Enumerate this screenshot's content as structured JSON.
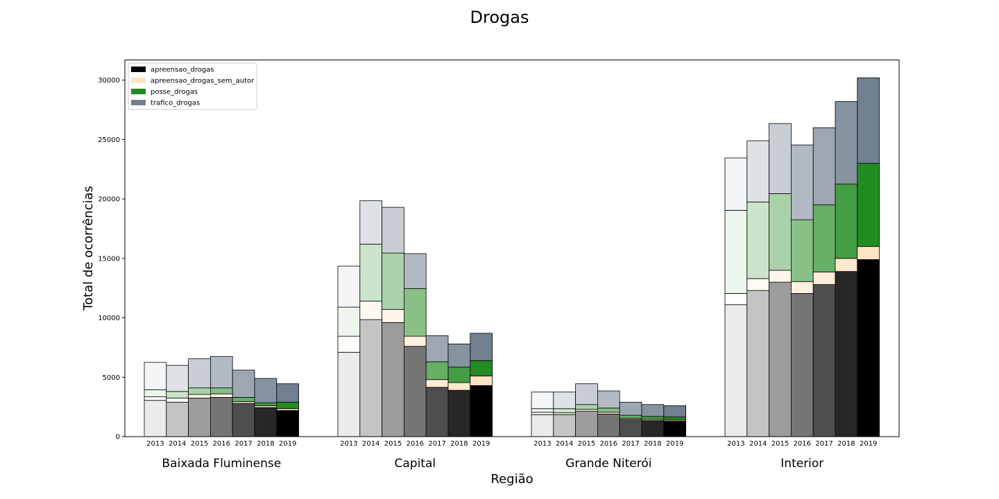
{
  "chart_data": {
    "type": "bar",
    "stacked": true,
    "title": "Drogas",
    "xlabel": "Região",
    "ylabel": "Total de ocorrências",
    "ylim": [
      0,
      31700
    ],
    "yticks": [
      0,
      5000,
      10000,
      15000,
      20000,
      25000,
      30000
    ],
    "grid": false,
    "legend_position": "top-left",
    "years": [
      "2013",
      "2014",
      "2015",
      "2016",
      "2017",
      "2018",
      "2019"
    ],
    "regions": [
      "Baixada Fluminense",
      "Capital",
      "Grande Niterói",
      "Interior"
    ],
    "series": [
      {
        "name": "apreensao_drogas",
        "color": "#000000",
        "values": {
          "Baixada Fluminense": [
            3050,
            2900,
            3250,
            3300,
            2800,
            2450,
            2200
          ],
          "Capital": [
            7100,
            9850,
            9600,
            7600,
            4150,
            3900,
            4300
          ],
          "Grande Niterói": [
            1850,
            1850,
            2150,
            1900,
            1450,
            1350,
            1300
          ],
          "Interior": [
            11100,
            12300,
            13000,
            12050,
            12800,
            13900,
            14900
          ]
        }
      },
      {
        "name": "apreensao_drogas_sem_autor",
        "color": "#ffe4c4",
        "values": {
          "Baixada Fluminense": [
            300,
            350,
            300,
            300,
            150,
            150,
            150
          ],
          "Capital": [
            1350,
            1550,
            1100,
            850,
            650,
            650,
            800
          ],
          "Grande Niterói": [
            200,
            150,
            150,
            150,
            100,
            100,
            100
          ],
          "Interior": [
            950,
            1000,
            1000,
            1000,
            1050,
            1100,
            1100
          ]
        }
      },
      {
        "name": "posse_drogas",
        "color": "#228b22",
        "values": {
          "Baixada Fluminense": [
            600,
            550,
            550,
            500,
            350,
            250,
            550
          ],
          "Capital": [
            2450,
            4800,
            4750,
            4000,
            1500,
            1300,
            1300
          ],
          "Grande Niterói": [
            300,
            350,
            400,
            350,
            250,
            250,
            250
          ],
          "Interior": [
            7000,
            6450,
            6450,
            5200,
            5650,
            6250,
            7000
          ]
        }
      },
      {
        "name": "trafico_drogas",
        "color": "#708090",
        "values": {
          "Baixada Fluminense": [
            2300,
            2200,
            2450,
            2650,
            2300,
            2050,
            1550
          ],
          "Capital": [
            3450,
            3650,
            3850,
            2950,
            2200,
            1950,
            2300
          ],
          "Grande Niterói": [
            1400,
            1400,
            1750,
            1450,
            1100,
            1000,
            950
          ],
          "Interior": [
            4400,
            5150,
            5900,
            6300,
            6500,
            6950,
            7200
          ]
        }
      }
    ]
  }
}
